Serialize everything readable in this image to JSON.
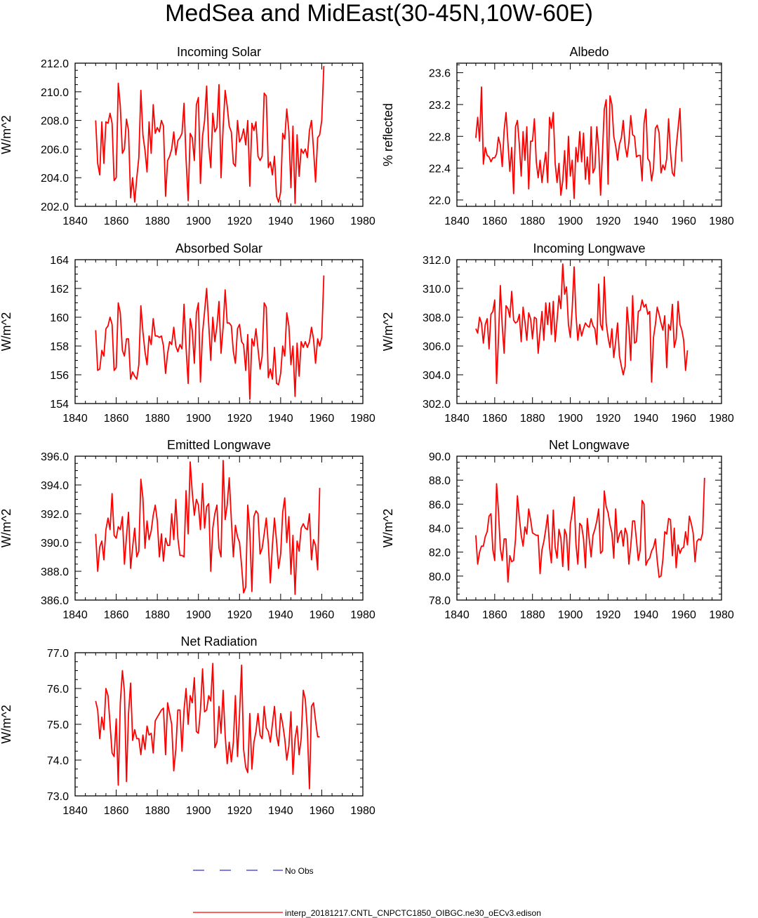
{
  "title": "MedSea and MidEast(30-45N,10W-60E)",
  "colors": {
    "model": "#ff0000",
    "obs": "#3333cc"
  },
  "legend": {
    "obs_label": "No Obs",
    "model_label": "interp_20181217.CNTL_CNPCTC1850_OIBGC.ne30_oECv3.edison"
  },
  "chart_data": [
    {
      "type": "line",
      "title": "Incoming Solar",
      "ylabel": "W/m^2",
      "xlabel": "",
      "xlim": [
        1840,
        1980
      ],
      "ylim": [
        202,
        212
      ],
      "decimals": 1,
      "xticks": [
        1840,
        1860,
        1880,
        1900,
        1920,
        1940,
        1960,
        1980
      ],
      "yticks": [
        202,
        204,
        206,
        208,
        210,
        212
      ],
      "x_start": 1850,
      "values": [
        208.0,
        205.0,
        204.2,
        207.9,
        205.0,
        207.9,
        207.8,
        208.5,
        207.8,
        203.8,
        204.0,
        210.6,
        209.0,
        205.7,
        206.0,
        208.1,
        207.3,
        202.6,
        204.0,
        202.3,
        204.0,
        205.4,
        210.1,
        207.0,
        205.9,
        204.4,
        207.9,
        205.7,
        209.1,
        207.1,
        207.5,
        207.2,
        208.0,
        207.6,
        202.7,
        205.2,
        205.5,
        206.0,
        207.2,
        205.6,
        206.6,
        206.8,
        207.1,
        209.2,
        205.3,
        202.4,
        207.1,
        206.8,
        205.2,
        209.1,
        209.6,
        203.6,
        206.9,
        208.0,
        210.4,
        206.2,
        204.7,
        208.5,
        207.2,
        207.5,
        210.5,
        204.0,
        207.5,
        210.1,
        209.0,
        207.6,
        207.2,
        205.0,
        204.8,
        208.0,
        206.5,
        206.8,
        207.4,
        206.3,
        208.0,
        203.4,
        207.8,
        207.3,
        207.9,
        205.5,
        205.2,
        205.5,
        209.9,
        209.7,
        204.7,
        205.1,
        204.2,
        205.5,
        202.7,
        202.3,
        203.0,
        207.1,
        206.7,
        208.8,
        207.2,
        203.3,
        207.6,
        202.2,
        207.0,
        204.1,
        206.0,
        205.7,
        206.0,
        205.4,
        207.3,
        208.0,
        206.0,
        203.7,
        206.8,
        207.0,
        208.0,
        211.8
      ]
    },
    {
      "type": "line",
      "title": "Albedo",
      "ylabel": "% reflected",
      "xlabel": "",
      "xlim": [
        1840,
        1980
      ],
      "ylim": [
        21.92,
        23.72
      ],
      "decimals": 1,
      "xticks": [
        1840,
        1860,
        1880,
        1900,
        1920,
        1940,
        1960,
        1980
      ],
      "yticks": [
        22.0,
        22.4,
        22.8,
        23.2,
        23.6
      ],
      "x_start": 1850,
      "values": [
        22.78,
        23.04,
        22.74,
        23.42,
        22.45,
        22.66,
        22.56,
        22.54,
        22.48,
        22.53,
        22.53,
        22.58,
        22.79,
        22.69,
        22.42,
        22.88,
        23.1,
        22.72,
        22.36,
        22.66,
        22.08,
        22.92,
        23.0,
        22.7,
        22.3,
        22.86,
        22.5,
        22.92,
        22.14,
        22.74,
        22.74,
        23.02,
        22.48,
        22.28,
        22.5,
        22.22,
        22.42,
        22.6,
        22.22,
        23.04,
        22.9,
        23.1,
        22.46,
        22.22,
        22.46,
        22.06,
        22.24,
        22.62,
        22.14,
        22.8,
        22.3,
        22.5,
        22.02,
        22.66,
        22.48,
        22.86,
        22.48,
        22.84,
        22.26,
        22.54,
        22.2,
        22.92,
        22.34,
        22.4,
        22.92,
        22.64,
        22.06,
        22.6,
        23.14,
        23.26,
        22.2,
        23.31,
        23.2,
        22.8,
        22.68,
        22.5,
        22.7,
        22.78,
        23.0,
        22.68,
        22.54,
        22.72,
        23.06,
        22.82,
        22.8,
        22.54,
        22.56,
        22.56,
        22.24,
        22.96,
        23.14,
        22.52,
        22.48,
        22.24,
        22.4,
        22.9,
        22.94,
        22.84,
        22.34,
        22.44,
        22.38,
        22.52,
        23.02,
        22.6,
        22.34,
        22.3,
        22.66,
        22.9,
        23.15,
        22.48
      ]
    },
    {
      "type": "line",
      "title": "Absorbed Solar",
      "ylabel": "W/m^2",
      "xlabel": "",
      "xlim": [
        1840,
        1980
      ],
      "ylim": [
        154,
        164
      ],
      "decimals": 0,
      "xticks": [
        1840,
        1860,
        1880,
        1900,
        1920,
        1940,
        1960,
        1980
      ],
      "yticks": [
        154,
        156,
        158,
        160,
        162,
        164
      ],
      "x_start": 1850,
      "values": [
        159.1,
        156.3,
        156.4,
        157.7,
        157.3,
        159.2,
        159.4,
        160.0,
        159.5,
        156.3,
        156.5,
        161.0,
        160.3,
        157.7,
        157.3,
        158.5,
        158.5,
        155.7,
        156.2,
        155.9,
        155.7,
        156.7,
        160.8,
        159.0,
        157.6,
        156.7,
        158.7,
        158.1,
        159.9,
        158.7,
        158.7,
        158.6,
        158.7,
        158.0,
        156.1,
        157.5,
        158.3,
        158.1,
        159.3,
        158.0,
        157.6,
        158.1,
        157.8,
        160.9,
        157.9,
        155.4,
        159.9,
        159.1,
        156.8,
        160.3,
        161.0,
        155.5,
        158.9,
        160.4,
        162.0,
        159.5,
        157.0,
        160.0,
        158.3,
        159.4,
        161.1,
        157.5,
        159.3,
        161.9,
        159.6,
        159.6,
        159.4,
        157.6,
        156.8,
        159.2,
        159.5,
        158.3,
        158.1,
        156.3,
        158.8,
        154.3,
        158.5,
        158.0,
        159.2,
        157.8,
        156.4,
        157.3,
        161.0,
        160.7,
        155.8,
        156.4,
        155.7,
        157.9,
        155.4,
        155.3,
        156.1,
        158.0,
        157.3,
        160.3,
        159.4,
        156.7,
        158.0,
        154.5,
        158.2,
        155.9,
        158.3,
        157.9,
        158.3,
        157.9,
        158.3,
        159.3,
        158.5,
        156.8,
        158.5,
        158.0,
        158.6,
        162.9
      ]
    },
    {
      "type": "line",
      "title": "Incoming Longwave",
      "ylabel": "W/m^2",
      "xlabel": "",
      "xlim": [
        1840,
        1980
      ],
      "ylim": [
        302,
        312
      ],
      "decimals": 1,
      "xticks": [
        1840,
        1860,
        1880,
        1900,
        1920,
        1940,
        1960,
        1980
      ],
      "yticks": [
        302,
        304,
        306,
        308,
        310,
        312
      ],
      "x_start": 1850,
      "values": [
        307.2,
        306.9,
        308.0,
        307.6,
        306.2,
        307.5,
        307.9,
        305.8,
        308.2,
        308.4,
        309.2,
        303.4,
        306.5,
        310.2,
        307.4,
        305.5,
        308.8,
        308.6,
        308.0,
        309.8,
        307.8,
        307.6,
        307.7,
        308.2,
        306.3,
        308.7,
        307.7,
        306.4,
        308.3,
        307.9,
        306.5,
        308.0,
        307.9,
        305.5,
        307.0,
        308.4,
        306.4,
        309.0,
        307.5,
        309.0,
        306.8,
        309.1,
        306.3,
        307.8,
        309.5,
        308.6,
        311.7,
        309.6,
        310.1,
        307.5,
        306.6,
        308.6,
        311.5,
        308.2,
        306.4,
        307.5,
        306.7,
        307.2,
        307.6,
        307.4,
        307.3,
        307.9,
        307.4,
        307.2,
        306.1,
        310.3,
        307.5,
        307.1,
        310.8,
        307.6,
        306.6,
        305.9,
        307.2,
        305.2,
        306.3,
        307.6,
        305.3,
        304.6,
        304.0,
        304.6,
        308.7,
        307.3,
        305.0,
        309.5,
        306.2,
        306.3,
        308.4,
        308.5,
        309.2,
        308.7,
        308.9,
        308.2,
        308.4,
        303.5,
        306.6,
        307.5,
        308.7,
        308.2,
        307.6,
        307.1,
        308.1,
        304.5,
        307.5,
        307.1,
        308.9,
        305.9,
        306.5,
        309.1,
        307.5,
        307.1,
        306.4,
        304.3,
        305.7
      ]
    },
    {
      "type": "line",
      "title": "Emitted Longwave",
      "ylabel": "W/m^2",
      "xlabel": "",
      "xlim": [
        1840,
        1980
      ],
      "ylim": [
        386,
        396
      ],
      "decimals": 1,
      "xticks": [
        1840,
        1860,
        1880,
        1900,
        1920,
        1940,
        1960,
        1980
      ],
      "yticks": [
        386,
        388,
        390,
        392,
        394,
        396
      ],
      "x_start": 1850,
      "values": [
        390.6,
        388.0,
        389.7,
        390.1,
        388.8,
        390.9,
        391.7,
        390.9,
        393.4,
        390.5,
        390.3,
        391.1,
        390.9,
        391.8,
        388.5,
        390.4,
        392.1,
        388.2,
        389.7,
        391.0,
        389.0,
        389.4,
        394.4,
        393.1,
        389.6,
        391.5,
        390.2,
        390.8,
        391.9,
        392.6,
        391.5,
        389.0,
        390.6,
        388.7,
        390.3,
        389.8,
        389.8,
        392.0,
        390.2,
        393.0,
        390.3,
        389.1,
        389.1,
        389.0,
        393.6,
        390.6,
        395.6,
        393.5,
        391.9,
        393.0,
        392.6,
        390.9,
        394.1,
        391.0,
        392.5,
        392.7,
        388.0,
        391.0,
        392.0,
        392.6,
        389.6,
        389.0,
        395.7,
        391.6,
        392.6,
        394.5,
        391.6,
        389.0,
        391.2,
        390.4,
        390.0,
        388.4,
        386.5,
        386.9,
        392.6,
        390.8,
        386.6,
        391.8,
        392.2,
        392.0,
        389.2,
        389.6,
        390.6,
        391.7,
        389.9,
        387.2,
        389.8,
        391.7,
        390.1,
        388.2,
        389.2,
        392.1,
        393.1,
        390.0,
        391.8,
        387.8,
        390.5,
        386.4,
        390.1,
        389.4,
        391.0,
        391.3,
        391.0,
        390.9,
        392.0,
        388.8,
        390.2,
        389.8,
        388.1,
        393.8
      ]
    },
    {
      "type": "line",
      "title": "Net Longwave",
      "ylabel": "W/m^2",
      "xlabel": "",
      "xlim": [
        1840,
        1980
      ],
      "ylim": [
        78,
        90
      ],
      "decimals": 1,
      "xticks": [
        1840,
        1860,
        1880,
        1900,
        1920,
        1940,
        1960,
        1980
      ],
      "yticks": [
        78,
        80,
        82,
        84,
        86,
        88,
        90
      ],
      "x_start": 1850,
      "values": [
        83.4,
        81.0,
        82.0,
        82.5,
        82.5,
        83.3,
        83.7,
        85.0,
        85.2,
        82.2,
        81.3,
        87.7,
        85.4,
        82.3,
        81.3,
        83.1,
        83.1,
        79.5,
        81.7,
        81.2,
        81.3,
        83.1,
        86.7,
        84.9,
        83.4,
        82.5,
        84.1,
        83.5,
        85.6,
        84.7,
        83.6,
        83.5,
        83.4,
        83.4,
        80.2,
        82.2,
        82.9,
        83.9,
        85.1,
        82.4,
        81.1,
        85.5,
        82.4,
        81.5,
        83.9,
        83.2,
        80.8,
        83.9,
        83.4,
        80.5,
        84.3,
        85.3,
        86.6,
        82.7,
        81.0,
        84.4,
        84.2,
        83.1,
        80.7,
        84.8,
        83.1,
        81.6,
        83.4,
        83.9,
        84.6,
        85.6,
        81.9,
        82.1,
        87.1,
        85.8,
        85.3,
        84.3,
        83.6,
        81.5,
        85.6,
        82.8,
        83.5,
        83.8,
        82.5,
        84.0,
        83.5,
        81.0,
        82.5,
        84.6,
        84.6,
        83.0,
        81.3,
        82.2,
        86.3,
        86.0,
        80.9,
        81.3,
        81.5,
        82.1,
        82.4,
        83.1,
        81.3,
        79.9,
        80.0,
        81.4,
        83.7,
        83.5,
        84.8,
        84.7,
        81.7,
        84.0,
        80.7,
        82.6,
        81.9,
        82.3,
        82.4,
        83.7,
        82.6,
        85.0,
        84.4,
        83.6,
        81.2,
        82.9,
        83.1,
        83.0,
        83.6,
        88.2
      ]
    },
    {
      "type": "line",
      "title": "Net Radiation",
      "ylabel": "W/m^2",
      "xlabel": "",
      "xlim": [
        1840,
        1980
      ],
      "ylim": [
        73,
        77
      ],
      "decimals": 1,
      "xticks": [
        1840,
        1860,
        1880,
        1900,
        1920,
        1940,
        1960,
        1980
      ],
      "yticks": [
        73,
        74,
        75,
        76,
        77
      ],
      "x_start": 1850,
      "values": [
        75.65,
        75.4,
        74.6,
        75.2,
        74.85,
        76.0,
        75.8,
        75.0,
        74.2,
        74.1,
        75.15,
        73.3,
        75.6,
        76.5,
        75.9,
        73.4,
        75.3,
        76.15,
        74.55,
        74.85,
        74.6,
        74.6,
        74.15,
        74.7,
        74.3,
        74.95,
        74.7,
        74.75,
        74.2,
        75.1,
        75.2,
        75.3,
        75.4,
        75.45,
        74.15,
        75.6,
        75.3,
        75.0,
        73.7,
        74.3,
        75.4,
        75.4,
        74.25,
        75.4,
        76.0,
        75.0,
        75.8,
        75.6,
        76.3,
        74.8,
        74.75,
        75.4,
        76.55,
        75.35,
        75.4,
        75.8,
        75.65,
        76.7,
        74.35,
        74.5,
        75.5,
        74.75,
        75.95,
        74.7,
        73.9,
        74.5,
        73.95,
        74.5,
        75.8,
        74.1,
        75.3,
        76.65,
        74.3,
        73.8,
        73.65,
        75.3,
        73.75,
        74.5,
        74.8,
        75.3,
        74.7,
        74.6,
        75.5,
        74.9,
        74.8,
        74.5,
        75.0,
        75.5,
        74.7,
        74.4,
        75.3,
        75.0,
        74.6,
        74.0,
        74.4,
        75.35,
        73.6,
        74.6,
        74.95,
        74.15,
        74.6,
        75.95,
        75.7,
        74.85,
        73.2,
        75.5,
        75.6,
        75.1,
        74.65,
        74.65
      ]
    }
  ]
}
